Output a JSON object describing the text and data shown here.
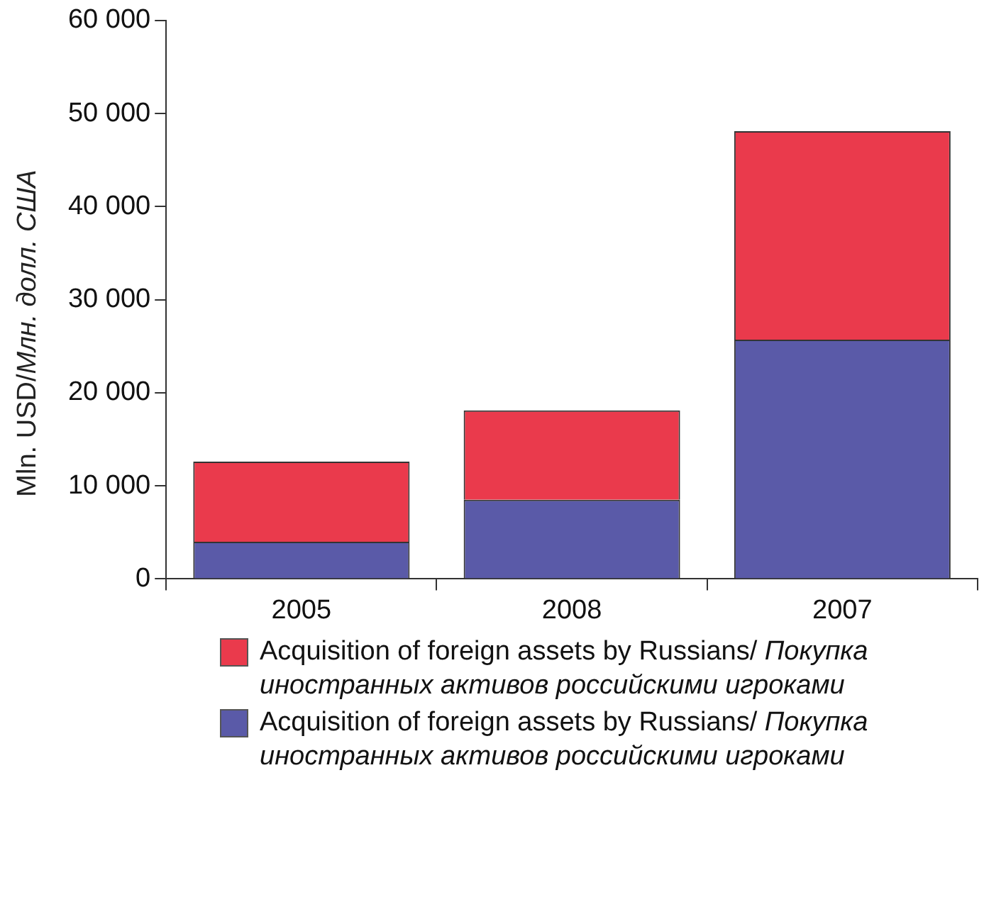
{
  "chart_data": {
    "type": "bar",
    "ylabel": "Mln. USD/Млн. долл. США",
    "categories": [
      "2005",
      "2008",
      "2007"
    ],
    "stacked": true,
    "series": [
      {
        "name": "Acquisition of foreign assets by Russians/ Покупка иностранных активов российскими игроками",
        "color": "#5a5aa8",
        "values": [
          4000,
          8500,
          25700
        ]
      },
      {
        "name": "Acquisition of foreign assets by Russians/ Покупка иностранных активов российскими игроками",
        "color": "#ea3a4c",
        "values": [
          8600,
          9600,
          22400
        ]
      }
    ],
    "ylim": [
      0,
      60000
    ],
    "yticks": [
      {
        "value": 0,
        "label": "0"
      },
      {
        "value": 10000,
        "label": "10 000"
      },
      {
        "value": 20000,
        "label": "20 000"
      },
      {
        "value": 30000,
        "label": "30 000"
      },
      {
        "value": 40000,
        "label": "40 000"
      },
      {
        "value": 50000,
        "label": "50 000"
      },
      {
        "value": 60000,
        "label": "60 000"
      }
    ],
    "grid": false,
    "legend": "bottom"
  }
}
